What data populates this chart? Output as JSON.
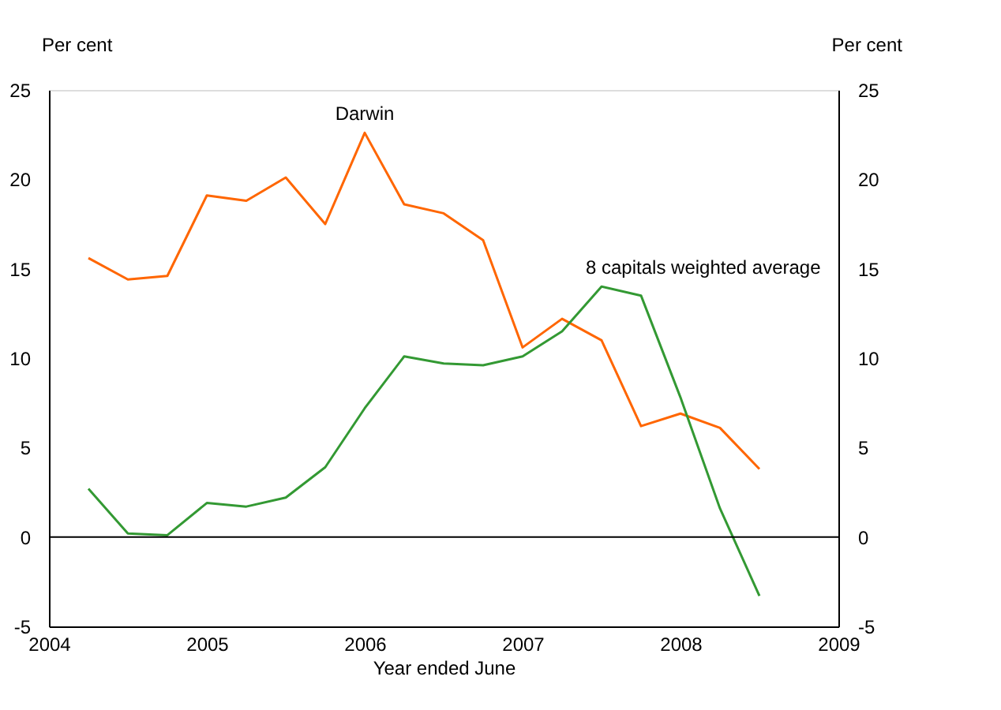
{
  "chart_data": {
    "type": "line",
    "x": [
      2004.25,
      2004.5,
      2004.75,
      2005,
      2005.25,
      2005.5,
      2005.75,
      2006,
      2006.25,
      2006.5,
      2006.75,
      2007,
      2007.25,
      2007.5,
      2007.75,
      2008,
      2008.25,
      2008.5
    ],
    "series": [
      {
        "name": "Darwin",
        "color": "#ff6600",
        "values": [
          15.6,
          14.4,
          14.6,
          19.1,
          18.8,
          20.1,
          17.5,
          22.6,
          18.6,
          18.1,
          16.6,
          10.6,
          12.2,
          11.0,
          6.2,
          6.9,
          6.1,
          3.8
        ]
      },
      {
        "name": "8 capitals weighted average",
        "color": "#339933",
        "values": [
          2.7,
          0.2,
          0.1,
          1.9,
          1.7,
          2.2,
          3.9,
          7.2,
          10.1,
          9.7,
          9.6,
          10.1,
          11.5,
          14.0,
          13.5,
          7.8,
          1.6,
          -3.3
        ]
      }
    ],
    "xlabel": "Year ended June",
    "ylabel": "Per cent",
    "y2label": "Per cent",
    "xlim": [
      2004,
      2009
    ],
    "xticks": [
      2004,
      2005,
      2006,
      2007,
      2008,
      2009
    ],
    "ylim": [
      -5,
      25
    ],
    "yticks": [
      -5,
      0,
      5,
      10,
      15,
      20,
      25
    ],
    "y2lim": [
      -5,
      25
    ],
    "y2ticks": [
      -5,
      0,
      5,
      10,
      15,
      20,
      25
    ],
    "ref_lines": [
      {
        "axis": "y",
        "value": 0,
        "color": "#000000"
      }
    ],
    "grid": false,
    "marker": "none",
    "line_style": "solid"
  }
}
